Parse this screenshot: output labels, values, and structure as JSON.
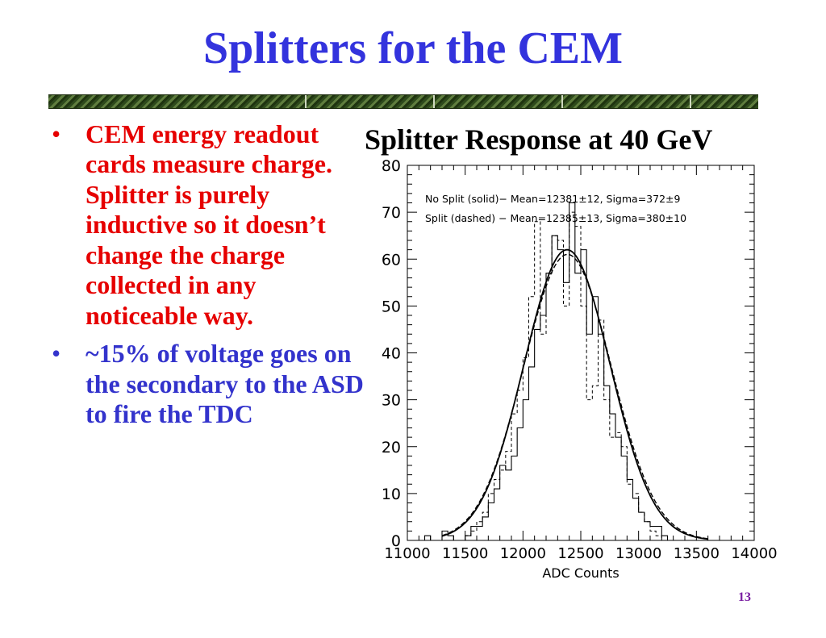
{
  "slide": {
    "title": "Splitters for the CEM",
    "page_number": "13",
    "bullets": [
      {
        "marker": "•",
        "text": "CEM energy readout cards measure charge. Splitter is purely inductive so it doesn’t change the charge collected in any noticeable way.",
        "color": "#e60000"
      },
      {
        "marker": "•",
        "text": "~15% of voltage goes on the secondary to the ASD to fire the TDC",
        "color": "#3333cc"
      }
    ]
  },
  "chart_data": {
    "type": "line",
    "heading": "Splitter Response at 40 GeV",
    "xlabel": "ADC Counts",
    "ylabel": "",
    "xlim": [
      11000,
      14000
    ],
    "ylim": [
      0,
      80
    ],
    "x_tick_labels": [
      "11000",
      "11500",
      "12000",
      "12500",
      "13000",
      "13500",
      "14000"
    ],
    "y_tick_labels": [
      "0",
      "10",
      "20",
      "30",
      "40",
      "50",
      "60",
      "70",
      "80"
    ],
    "legend": [
      "No Split (solid)− Mean=12381±12, Sigma=372±9",
      "Split (dashed) − Mean=12385±13, Sigma=380±10"
    ],
    "legend_position": "top",
    "bin_width": 50,
    "series": [
      {
        "style": "solid-histogram",
        "bins_start": 11000,
        "values": [
          0,
          0,
          0,
          1,
          0,
          0,
          2,
          1,
          0,
          0,
          1,
          3,
          3,
          5,
          8,
          11,
          16,
          15,
          18,
          24,
          30,
          37,
          45,
          48,
          57,
          65,
          62,
          55,
          72,
          57,
          62,
          44,
          52,
          44,
          33,
          27,
          22,
          18,
          13,
          9,
          6,
          4,
          3,
          3,
          1,
          0,
          0,
          0,
          0,
          0,
          0,
          0,
          0,
          0,
          0,
          0,
          0,
          0,
          0,
          0
        ]
      },
      {
        "style": "dashed-histogram",
        "bins_start": 11000,
        "values": [
          0,
          0,
          0,
          0,
          0,
          0,
          0,
          0,
          0,
          0,
          1,
          2,
          4,
          6,
          10,
          13,
          15,
          19,
          27,
          32,
          39,
          52,
          68,
          44,
          57,
          65,
          64,
          50,
          70,
          67,
          50,
          30,
          33,
          47,
          30,
          22,
          23,
          20,
          12,
          10,
          6,
          4,
          2,
          1,
          0,
          0,
          0,
          0,
          0,
          0,
          0,
          0,
          0,
          0,
          0,
          0,
          0,
          0,
          0,
          0
        ]
      },
      {
        "style": "solid-gaussian-fit",
        "mean": 12381,
        "sigma": 372,
        "amplitude": 62
      },
      {
        "style": "dashed-gaussian-fit",
        "mean": 12385,
        "sigma": 380,
        "amplitude": 61
      }
    ]
  }
}
